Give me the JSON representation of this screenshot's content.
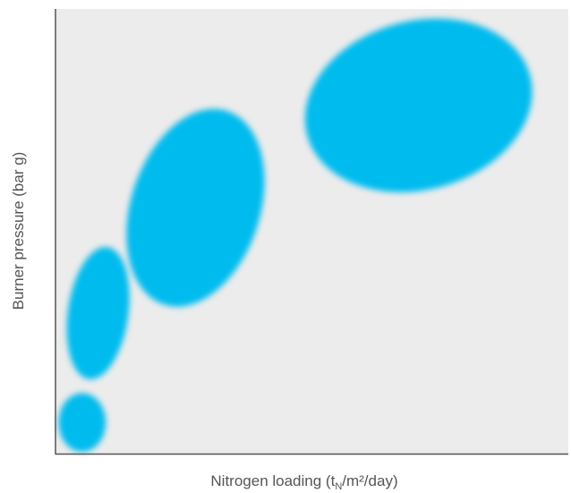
{
  "chart_data": {
    "type": "scatter",
    "title": "",
    "xlabel": {
      "prefix": "Nitrogen loading (t",
      "subscript": "N",
      "suffix": "/m²/day)"
    },
    "ylabel": "Burner pressure (bar g)",
    "xlim": [
      0,
      100
    ],
    "ylim": [
      0,
      100
    ],
    "grid": false,
    "show_tick_labels": false,
    "plot_background": "#ececec",
    "axis_color": "#555555",
    "series": [
      {
        "color": "#00bbee",
        "points": [
          {
            "x": 5.2,
            "y": 7.0,
            "rx": 4.6,
            "ry": 6.6,
            "angle": 0
          },
          {
            "x": 8.3,
            "y": 31.6,
            "rx": 5.9,
            "ry": 15.0,
            "angle": 8
          },
          {
            "x": 27.3,
            "y": 55.3,
            "rx": 12.6,
            "ry": 22.9,
            "angle": 18
          },
          {
            "x": 70.8,
            "y": 78.3,
            "rx": 22.5,
            "ry": 19.0,
            "angle": -15
          }
        ]
      }
    ]
  }
}
